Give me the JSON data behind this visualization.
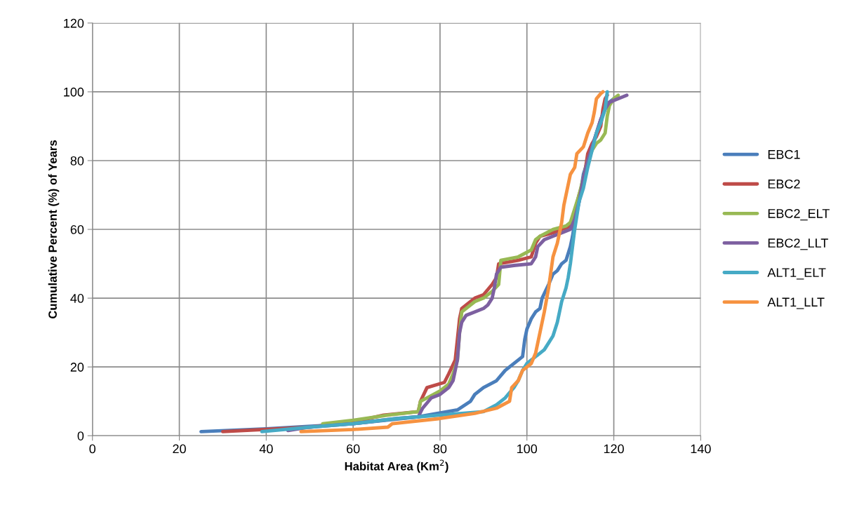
{
  "chart_data": {
    "type": "line",
    "xlabel": "Habitat Area (Km$^{2}$)",
    "ylabel": "Cumulative Percent (%) of Years",
    "xlim": [
      0,
      140
    ],
    "xticks": [
      0,
      20,
      40,
      60,
      80,
      100,
      120,
      140
    ],
    "ylim": [
      0,
      120
    ],
    "yticks": [
      0,
      20,
      40,
      60,
      80,
      100,
      120
    ],
    "grid": true,
    "legend": "right",
    "marker": "none",
    "line_style": "solid",
    "series": [
      {
        "name": "EBC1",
        "color": "#4a7ebb",
        "x": [
          25,
          40,
          60,
          75,
          84,
          87,
          88,
          90,
          93,
          95,
          98,
          99,
          99.5,
          100,
          101,
          102,
          103,
          103.5,
          105,
          106,
          107,
          108,
          109,
          110,
          110.5,
          111,
          112,
          112.5,
          113,
          114,
          115,
          116,
          117,
          118,
          119,
          120
        ],
        "values": [
          1.2,
          2,
          3.5,
          5.5,
          7.5,
          10,
          12,
          14,
          16,
          19,
          22,
          23,
          28,
          31,
          34,
          36,
          37,
          40,
          44,
          47,
          48,
          50,
          51,
          55,
          58,
          62,
          68,
          72,
          76,
          80,
          84,
          88,
          92,
          95,
          97,
          98
        ]
      },
      {
        "name": "EBC2",
        "color": "#be4b48",
        "x": [
          30,
          50,
          60,
          67,
          75,
          75.5,
          77,
          81,
          82,
          83.5,
          84,
          84.5,
          85,
          86,
          88,
          90,
          92,
          93,
          93.5,
          98,
          101,
          102,
          103,
          106,
          108,
          110,
          111,
          112,
          113,
          113.5,
          114,
          115,
          116,
          117,
          117.5,
          118,
          118.5
        ],
        "values": [
          1.2,
          2.5,
          4,
          6,
          7,
          10,
          14,
          15.5,
          18,
          22,
          28,
          34,
          37,
          38,
          40,
          41,
          44,
          46,
          50,
          51,
          52,
          56,
          58,
          59,
          60,
          61,
          65,
          70,
          74,
          78,
          82,
          85,
          87,
          90,
          95,
          98,
          99
        ]
      },
      {
        "name": "EBC2_ELT",
        "color": "#98b954",
        "x": [
          53,
          60,
          68,
          75,
          75.5,
          77,
          80,
          82,
          83,
          84,
          84.5,
          85,
          86,
          88,
          90,
          92,
          93.5,
          94,
          98,
          101,
          102,
          103,
          106,
          109,
          110,
          111,
          112,
          113,
          114,
          115,
          116,
          117,
          118,
          118.5,
          119,
          120,
          121
        ],
        "values": [
          3.5,
          4.5,
          6,
          7,
          10,
          11,
          13,
          15,
          18,
          22,
          30,
          36,
          37,
          39,
          40,
          42,
          44,
          51,
          52,
          54,
          57,
          58,
          60,
          61,
          62,
          66,
          70,
          75,
          80,
          83,
          85,
          86,
          88,
          93,
          96,
          98,
          99
        ]
      },
      {
        "name": "EBC2_LLT",
        "color": "#7d60a0",
        "x": [
          45,
          50,
          60,
          70,
          75,
          76,
          78,
          80,
          82,
          83,
          84,
          84.5,
          85,
          86,
          88,
          90,
          91,
          92,
          92.5,
          93,
          94,
          97,
          101,
          102,
          102.5,
          104,
          106,
          108,
          110,
          111,
          112,
          113,
          114,
          115,
          116,
          117,
          118,
          119,
          121,
          123
        ],
        "values": [
          1.5,
          2.5,
          3.5,
          5,
          5.5,
          8,
          11,
          12,
          14,
          16,
          22,
          30,
          33,
          35,
          36,
          37,
          38,
          40,
          43,
          47,
          49,
          49.5,
          50,
          52,
          55,
          57,
          58,
          59,
          60,
          63,
          68,
          75,
          80,
          84,
          88,
          92,
          95,
          97,
          98,
          99
        ]
      },
      {
        "name": "ALT1_ELT",
        "color": "#46aac5",
        "x": [
          39,
          50,
          60,
          70,
          80,
          90,
          93,
          95,
          97,
          98,
          99,
          100,
          102,
          103,
          104,
          105,
          106,
          107,
          107.5,
          108,
          109,
          109.5,
          110,
          110.5,
          111,
          111.5,
          112,
          113,
          114,
          115,
          116,
          117,
          118,
          118.5
        ],
        "values": [
          1.2,
          2.5,
          3.5,
          5,
          6,
          7,
          9,
          11,
          14,
          16,
          19,
          21,
          23,
          24,
          25,
          27,
          29,
          33,
          36,
          39,
          43,
          46,
          50,
          55,
          60,
          64,
          68,
          72,
          78,
          83,
          88,
          91,
          95,
          100
        ]
      },
      {
        "name": "ALT1_LLT",
        "color": "#f69240",
        "x": [
          48,
          60,
          68,
          69,
          80,
          88,
          93,
          96,
          96.5,
          98,
          99,
          101,
          102,
          103,
          104,
          105,
          106,
          107,
          108,
          108.5,
          109,
          110,
          111,
          111.5,
          113,
          114,
          115,
          115.5,
          116,
          117,
          117.5
        ],
        "values": [
          1.2,
          1.8,
          2.5,
          3.5,
          5,
          6.5,
          8,
          10,
          14,
          16,
          19,
          21,
          24,
          30,
          36,
          43,
          52,
          56,
          62,
          67,
          70,
          76,
          78,
          82,
          84,
          88,
          91,
          94,
          98,
          99.5,
          100
        ]
      }
    ]
  }
}
